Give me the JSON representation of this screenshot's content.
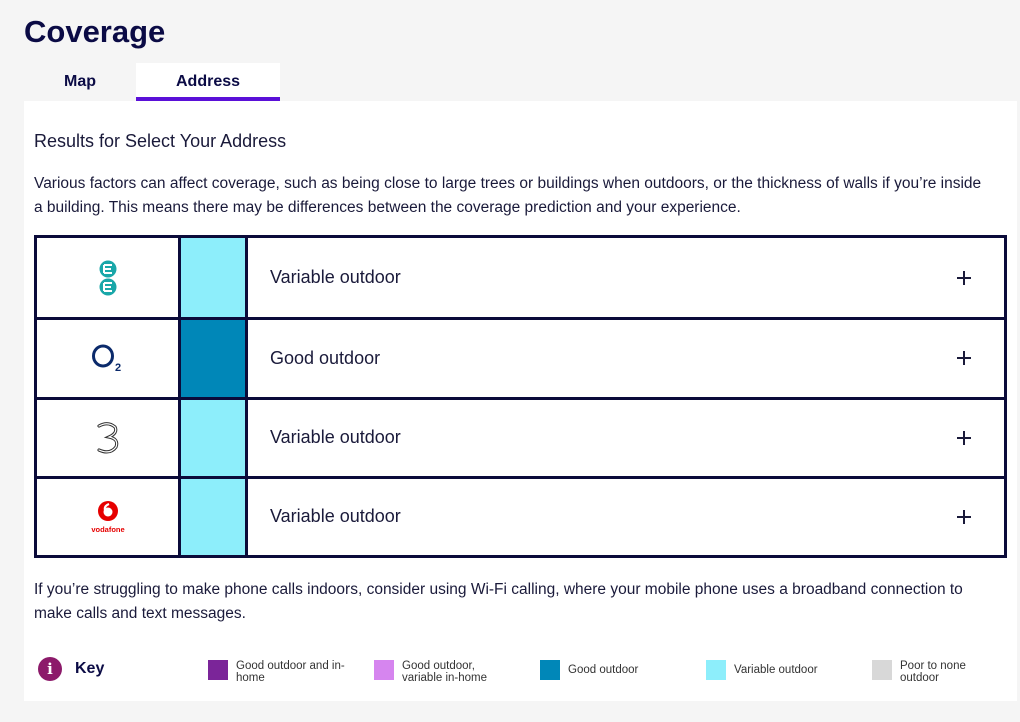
{
  "page": {
    "title": "Coverage"
  },
  "tabs": [
    {
      "label": "Map",
      "active": false
    },
    {
      "label": "Address",
      "active": true
    }
  ],
  "results": {
    "title": "Results for Select Your Address",
    "intro": "Various factors can affect coverage, such as being close to large trees or buildings when outdoors, or the thickness of walls if you’re inside a building. This means there may be differences between the coverage prediction and your experience."
  },
  "operators": [
    {
      "name": "EE",
      "icon": "ee-logo-icon",
      "status": "Variable outdoor",
      "color": "#8deefb"
    },
    {
      "name": "O2",
      "icon": "o2-logo-icon",
      "status": "Good outdoor",
      "color": "#0087b8"
    },
    {
      "name": "Three",
      "icon": "three-logo-icon",
      "status": "Variable outdoor",
      "color": "#8deefb"
    },
    {
      "name": "Vodafone",
      "icon": "vodafone-logo-icon",
      "status": "Variable outdoor",
      "color": "#8deefb"
    }
  ],
  "expand_symbol": "+",
  "footer": {
    "text": "If you’re struggling to make phone calls indoors, consider using Wi-Fi calling, where your mobile phone uses a broadband connection to make calls and text messages."
  },
  "key": {
    "label": "Key",
    "info_icon": "i",
    "items": [
      {
        "label": "Good outdoor and in-home",
        "color": "#7b2599"
      },
      {
        "label": "Good outdoor, variable in-home",
        "color": "#d685ef"
      },
      {
        "label": "Good outdoor",
        "color": "#0087b8"
      },
      {
        "label": "Variable outdoor",
        "color": "#8deefb"
      },
      {
        "label": "Poor to none outdoor",
        "color": "#d8d8d8"
      }
    ]
  }
}
